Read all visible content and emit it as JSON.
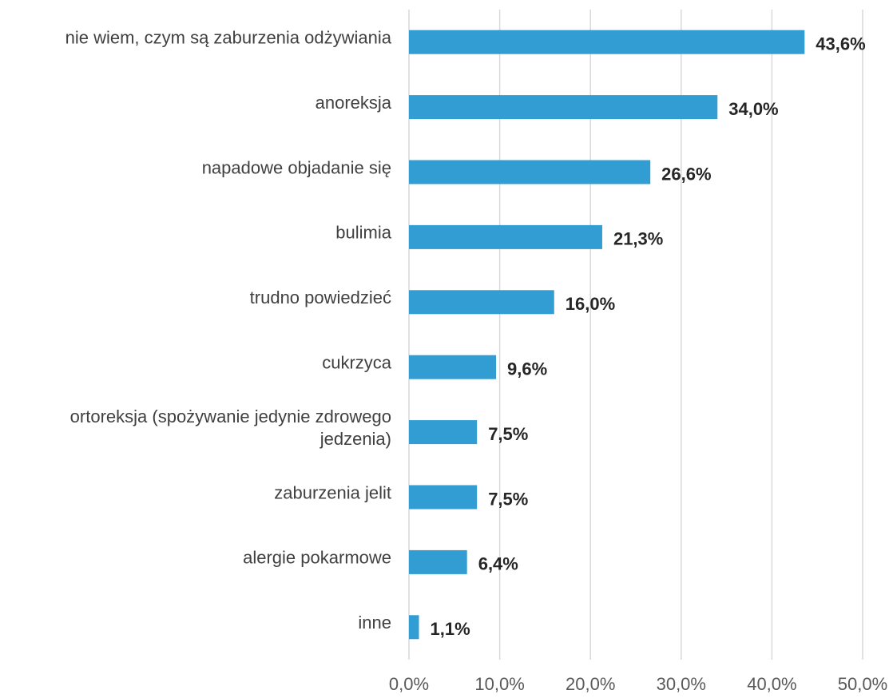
{
  "chart_data": {
    "type": "barh",
    "categories": [
      "nie wiem, czym są zaburzenia odżywiania",
      "anoreksja",
      "napadowe objadanie się",
      "bulimia",
      "trudno powiedzieć",
      "cukrzyca",
      "ortoreksja (spożywanie jedynie zdrowego\njedzenia)",
      "zaburzenia jelit",
      "alergie pokarmowe",
      "inne"
    ],
    "values": [
      43.6,
      34.0,
      26.6,
      21.3,
      16.0,
      9.6,
      7.5,
      7.5,
      6.4,
      1.1
    ],
    "value_labels": [
      "43,6%",
      "34,0%",
      "26,6%",
      "21,3%",
      "16,0%",
      "9,6%",
      "7,5%",
      "7,5%",
      "6,4%",
      "1,1%"
    ],
    "color": "#319dd3",
    "xlim": [
      0,
      50
    ],
    "xticks": [
      {
        "value": 0,
        "label": "0,0%"
      },
      {
        "value": 10,
        "label": "10,0%"
      },
      {
        "value": 20,
        "label": "20,0%"
      },
      {
        "value": 30,
        "label": "30,0%"
      },
      {
        "value": 40,
        "label": "40,0%"
      },
      {
        "value": 50,
        "label": "50,0%"
      }
    ],
    "grid": true
  }
}
